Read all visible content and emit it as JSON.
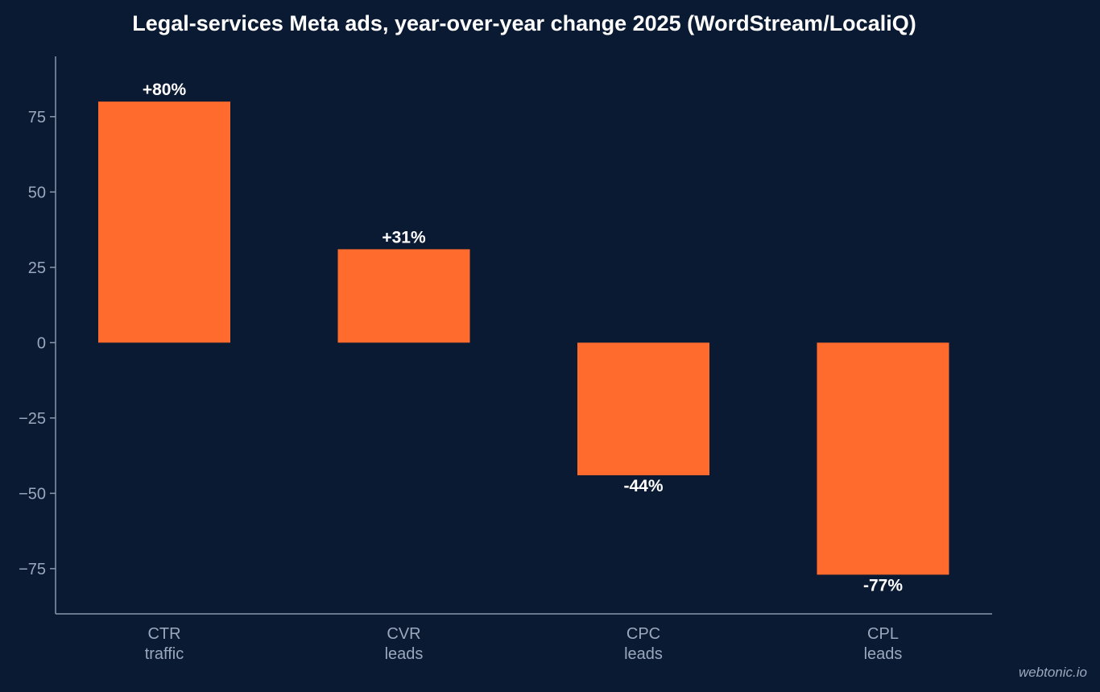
{
  "chart_data": {
    "type": "bar",
    "title": "Legal-services Meta ads, year-over-year change 2025 (WordStream/LocaliQ)",
    "categories": [
      {
        "name": "CTR",
        "sub": "traffic"
      },
      {
        "name": "CVR",
        "sub": "leads"
      },
      {
        "name": "CPC",
        "sub": "leads"
      },
      {
        "name": "CPL",
        "sub": "leads"
      }
    ],
    "values": [
      80,
      31,
      -44,
      -77
    ],
    "data_labels": [
      "+80%",
      "+31%",
      "-44%",
      "-77%"
    ],
    "ylim": [
      -90,
      95
    ],
    "yticks": [
      75,
      50,
      25,
      0,
      -25,
      -50,
      -75
    ],
    "ytick_labels": [
      "75",
      "50",
      "25",
      "0",
      "−25",
      "−50",
      "−75"
    ],
    "grid": false,
    "bar_color": "#ff6b2c",
    "background_color": "#0b1a33",
    "axis_color": "#8a97ad",
    "label_color": "#9aa7bd"
  },
  "watermark": "webtonic.io"
}
